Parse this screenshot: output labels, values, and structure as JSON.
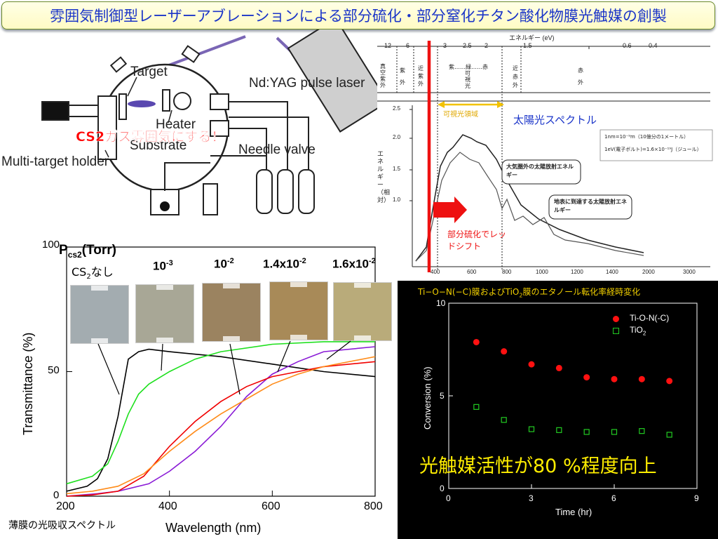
{
  "title": "雰囲気制御型レーザーアブレーションによる部分硫化・部分窒化チタン酸化物膜光触媒の創製",
  "apparatus": {
    "target": "Target",
    "heater": "Heater",
    "substrate": "Substrate",
    "multi_target_holder": "Multi-target holder",
    "laser": "Nd:YAG pulse laser",
    "needle_valve": "Needle valve",
    "callout": "CS2ガス雰囲気にする！"
  },
  "spectrum": {
    "energy_axis_label": "エネルギー (eV)",
    "energy_ticks": [
      "12",
      "6",
      "3",
      "2.5",
      "2",
      "1.5",
      "0.6",
      "0.4"
    ],
    "regions": [
      "真空紫外",
      "紫外",
      "近紫外",
      "紫……緑……赤",
      "可視光",
      "近赤外",
      "赤外"
    ],
    "visible_label": "可視光領域",
    "sunlight_label": "太陽光スペクトル",
    "yaxis_label": "エネルギー（相対）",
    "y_ticks": [
      "2.5",
      "2.0",
      "1.5",
      "1.0"
    ],
    "x_ticks": [
      "400",
      "600",
      "800",
      "1000",
      "1200",
      "1400",
      "2000",
      "3000"
    ],
    "note_line1": "1nm=10⁻⁹m（10億分の1メートル）",
    "note_line2": "1eV(電子ボルト)=1.6×10⁻¹⁹J（ジュール）",
    "bubble_outer": "大気圏外の太陽放射エネルギー",
    "bubble_ground": "地表に到達する太陽放射エネルギー",
    "redshift_label": "部分硫化でレッドシフト",
    "colors": {
      "red_line": "#ee1111",
      "visible": "#f2c200",
      "sunlight_text": "#1a34c9"
    }
  },
  "transmittance": {
    "header_p": "P",
    "header_sub": "cs2",
    "header_unit": "(Torr)",
    "samples": [
      {
        "label": "CS2なし",
        "color": "#a3acb0"
      },
      {
        "label": "10-3",
        "color": "#a8a796"
      },
      {
        "label": "10-2",
        "color": "#9b8360"
      },
      {
        "label": "1.4x10-2",
        "color": "#a88a58"
      },
      {
        "label": "1.6x10-2",
        "color": "#b9ab7a"
      }
    ],
    "caption": "薄膜の光吸収スペクトル"
  },
  "conversion": {
    "title": "Ti−O−N(−C)膜およびTiO2膜のエタノール転化率経時変化",
    "legend": [
      "Ti-O-N(-C)",
      "TiO2"
    ],
    "highlight": "光触媒活性が80 %程度向上"
  },
  "chart_data": [
    {
      "type": "line",
      "xlabel": "Wavelength (nm)",
      "ylabel": "Transmittance (%)",
      "xlim": [
        200,
        800
      ],
      "ylim": [
        0,
        100
      ],
      "x_ticks": [
        200,
        400,
        600,
        800
      ],
      "y_ticks": [
        0,
        50,
        100
      ],
      "series": [
        {
          "name": "CS2なし",
          "color": "#000000",
          "x": [
            200,
            240,
            260,
            280,
            300,
            320,
            340,
            360,
            400,
            500,
            600,
            700,
            800
          ],
          "y": [
            2,
            4,
            7,
            15,
            32,
            55,
            58,
            59,
            58,
            56,
            53,
            50,
            48
          ]
        },
        {
          "name": "10-3",
          "color": "#1ee01e",
          "x": [
            200,
            250,
            280,
            300,
            320,
            340,
            360,
            400,
            450,
            500,
            600,
            700,
            800
          ],
          "y": [
            5,
            8,
            13,
            22,
            33,
            41,
            45,
            50,
            55,
            58,
            61,
            62,
            62
          ]
        },
        {
          "name": "10-2",
          "color": "#8a1bd6",
          "x": [
            200,
            260,
            300,
            360,
            400,
            450,
            500,
            550,
            600,
            650,
            700,
            800
          ],
          "y": [
            0,
            1,
            2,
            5,
            10,
            18,
            28,
            40,
            49,
            54,
            58,
            60
          ]
        },
        {
          "name": "1.4x10-2",
          "color": "#f00000",
          "x": [
            200,
            250,
            300,
            350,
            400,
            450,
            500,
            550,
            600,
            650,
            700,
            800
          ],
          "y": [
            0,
            0.5,
            2,
            8,
            20,
            30,
            38,
            44,
            48,
            50,
            52,
            54
          ]
        },
        {
          "name": "1.6x10-2",
          "color": "#ff8c1a",
          "x": [
            200,
            250,
            300,
            350,
            400,
            450,
            500,
            550,
            600,
            650,
            700,
            800
          ],
          "y": [
            1,
            2,
            4,
            9,
            18,
            26,
            33,
            39,
            45,
            49,
            52,
            56
          ]
        }
      ]
    },
    {
      "type": "scatter",
      "xlabel": "Time (hr)",
      "ylabel": "Conversion (%)",
      "xlim": [
        0,
        9
      ],
      "ylim": [
        0,
        10
      ],
      "x_ticks": [
        0,
        3,
        6,
        9
      ],
      "y_ticks": [
        0,
        5,
        10
      ],
      "series": [
        {
          "name": "Ti-O-N(-C)",
          "color": "#ff1111",
          "marker": "filled-circle",
          "x": [
            1,
            2,
            3,
            4,
            5,
            6,
            7,
            8
          ],
          "y": [
            7.9,
            7.4,
            6.7,
            6.5,
            6.0,
            5.9,
            5.9,
            5.8
          ]
        },
        {
          "name": "TiO2",
          "color": "#22cc22",
          "marker": "open-square",
          "x": [
            1,
            2,
            3,
            4,
            5,
            6,
            7,
            8
          ],
          "y": [
            4.4,
            3.7,
            3.2,
            3.15,
            3.05,
            3.05,
            3.1,
            2.9
          ]
        }
      ]
    }
  ]
}
